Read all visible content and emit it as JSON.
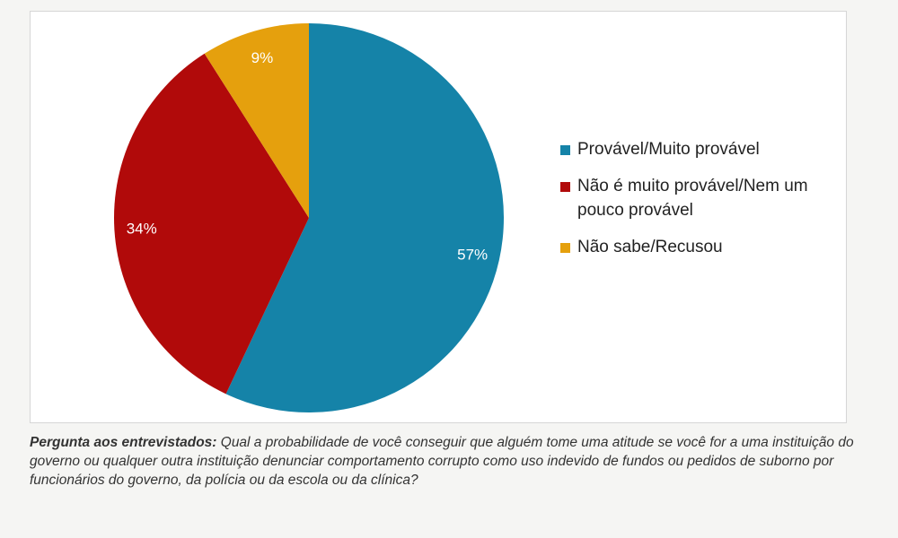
{
  "chart_data": {
    "type": "pie",
    "title": "",
    "slices": [
      {
        "label": "Provável/Muito provável",
        "value": 57,
        "display": "57%",
        "color": "#1583a8"
      },
      {
        "label": "Não é muito provável/Nem um pouco provável",
        "value": 34,
        "display": "34%",
        "color": "#b10a0a"
      },
      {
        "label": "Não sabe/Recusou",
        "value": 9,
        "display": "9%",
        "color": "#e5a00d"
      }
    ],
    "legend_position": "right"
  },
  "legend": {
    "items": [
      {
        "label": "Provável/Muito provável",
        "color": "#1583a8"
      },
      {
        "label": "Não é muito provável/Nem um pouco provável",
        "color": "#b10a0a"
      },
      {
        "label": "Não sabe/Recusou",
        "color": "#e5a00d"
      }
    ]
  },
  "question": {
    "lead": "Pergunta aos entrevistados:",
    "text": " Qual a probabilidade de você conseguir que alguém tome uma atitude se você for a uma instituição do governo ou qualquer outra instituição denunciar comportamento corrupto como uso indevido de fundos ou pedidos de suborno por funcionários do governo, da polícia ou da escola ou da clínica?"
  }
}
